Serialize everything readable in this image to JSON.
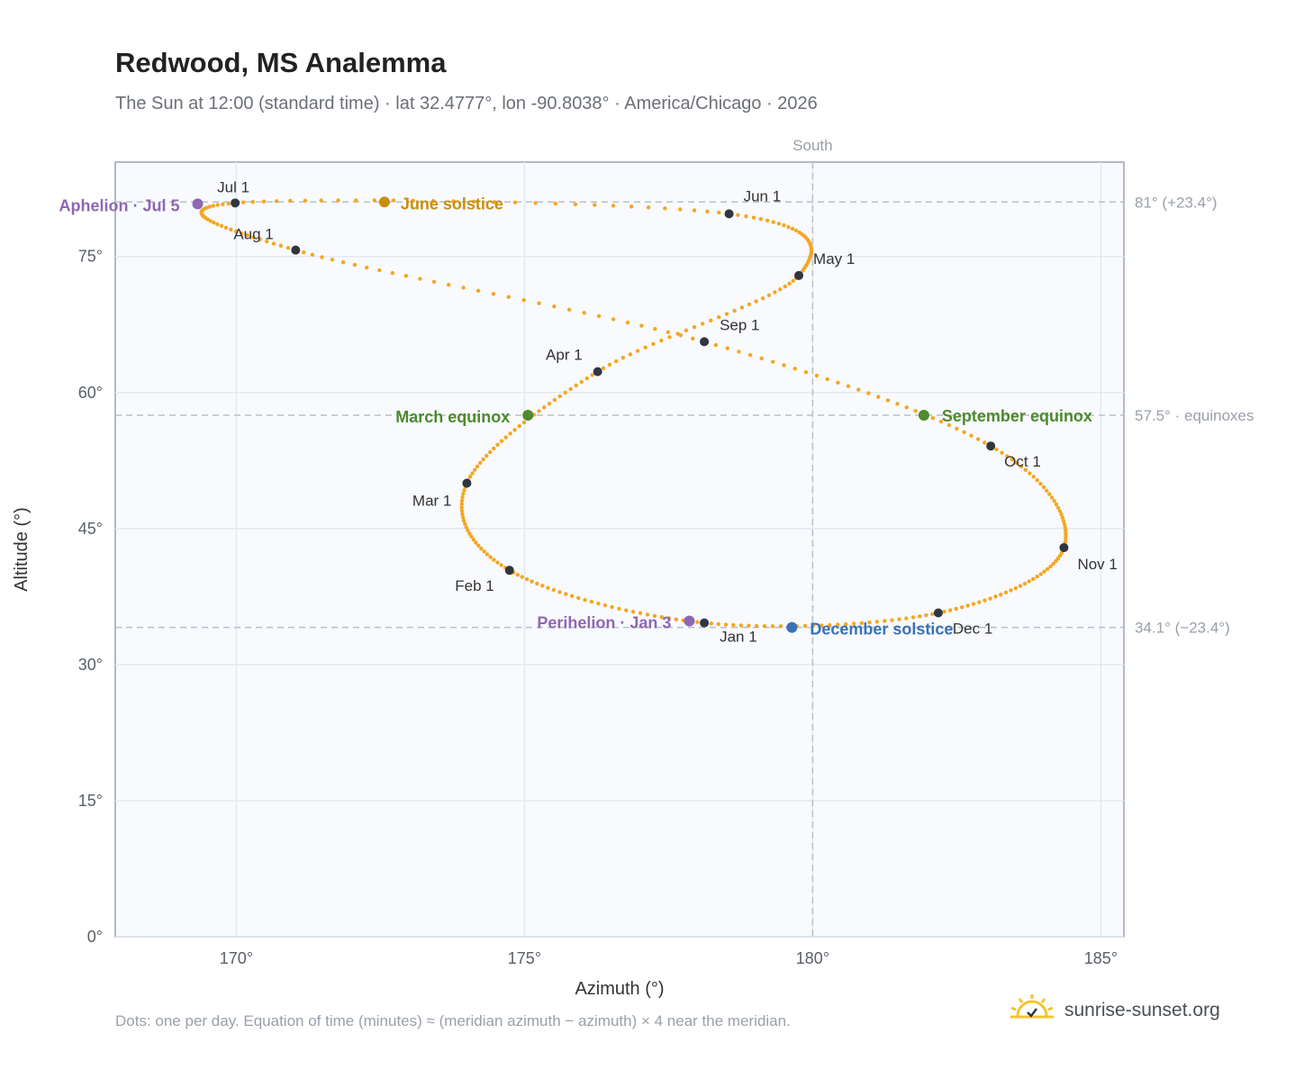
{
  "header": {
    "title": "Redwood, MS Analemma",
    "subtitle": "The Sun at 12:00 (standard time) · lat 32.4777°, lon -90.8038° · America/Chicago · 2026"
  },
  "footer": {
    "note": "Dots: one per day. Equation of time (minutes) ≈ (meridian azimuth − azimuth) × 4 near the meridian.",
    "brand": "sunrise-sunset.org"
  },
  "chart_data": {
    "type": "scatter",
    "xlabel": "Azimuth (°)",
    "ylabel": "Altitude (°)",
    "xlim": [
      167.9,
      185.4
    ],
    "ylim": [
      0,
      85.4
    ],
    "x_ticks": [
      "170°",
      "175°",
      "180°",
      "185°"
    ],
    "y_ticks": [
      "0°",
      "15°",
      "30°",
      "45°",
      "60°",
      "75°"
    ],
    "grid": true,
    "meridian": {
      "azimuth": 180,
      "label": "South"
    },
    "reference_lines": [
      {
        "altitude": 81.0,
        "label": "81° (+23.4°)"
      },
      {
        "altitude": 57.5,
        "label": "57.5° · equinoxes"
      },
      {
        "altitude": 34.1,
        "label": "34.1° (−23.4°)"
      }
    ],
    "colors": {
      "path": "#f5a623",
      "month_marker": "#2f3640",
      "solstice_june": "#c98f0a",
      "equinox": "#4e8a2e",
      "solstice_december": "#3a72b8",
      "apsis": "#8e67b3",
      "plot_bg": "#f8fafd",
      "grid": "#e4e9ef",
      "frame": "#9aa4b2"
    },
    "month_markers": [
      {
        "label": "Jan 1",
        "azimuth": 178.12,
        "altitude": 34.6
      },
      {
        "label": "Feb 1",
        "azimuth": 174.74,
        "altitude": 40.4
      },
      {
        "label": "Mar 1",
        "azimuth": 174.0,
        "altitude": 50.0
      },
      {
        "label": "Apr 1",
        "azimuth": 176.27,
        "altitude": 62.3
      },
      {
        "label": "May 1",
        "azimuth": 179.76,
        "altitude": 72.9
      },
      {
        "label": "Jun 1",
        "azimuth": 178.55,
        "altitude": 79.7
      },
      {
        "label": "Jul 1",
        "azimuth": 169.98,
        "altitude": 80.9
      },
      {
        "label": "Aug 1",
        "azimuth": 171.03,
        "altitude": 75.7
      },
      {
        "label": "Sep 1",
        "azimuth": 178.12,
        "altitude": 65.6
      },
      {
        "label": "Oct 1",
        "azimuth": 183.09,
        "altitude": 54.1
      },
      {
        "label": "Nov 1",
        "azimuth": 184.36,
        "altitude": 42.9
      },
      {
        "label": "Dec 1",
        "azimuth": 182.18,
        "altitude": 35.7
      }
    ],
    "events": [
      {
        "label": "June solstice",
        "azimuth": 172.57,
        "altitude": 81.0,
        "kind": "solstice_june"
      },
      {
        "label": "March equinox",
        "azimuth": 175.06,
        "altitude": 57.5,
        "kind": "equinox"
      },
      {
        "label": "September equinox",
        "azimuth": 181.93,
        "altitude": 57.5,
        "kind": "equinox"
      },
      {
        "label": "December solstice",
        "azimuth": 179.64,
        "altitude": 34.1,
        "kind": "solstice_december"
      },
      {
        "label": "Aphelion · Jul 5",
        "azimuth": 169.33,
        "altitude": 80.8,
        "kind": "apsis"
      },
      {
        "label": "Perihelion · Jan 3",
        "azimuth": 177.86,
        "altitude": 34.8,
        "kind": "apsis"
      }
    ]
  }
}
